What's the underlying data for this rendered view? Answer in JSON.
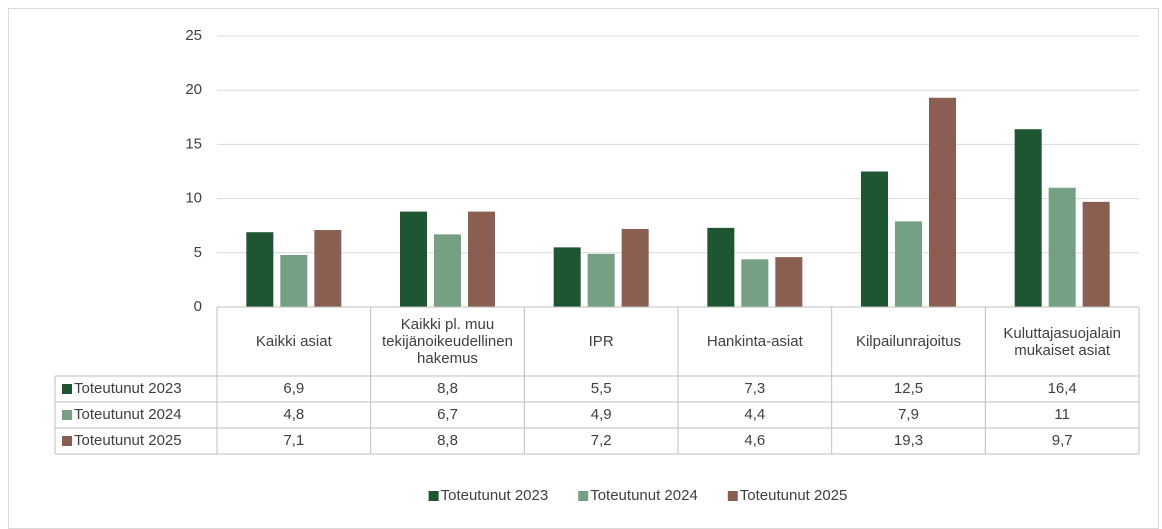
{
  "chart_data": {
    "type": "bar",
    "categories": [
      "Kaikki asiat",
      "Kaikki pl. muu tekijänoikeudellinen hakemus",
      "IPR",
      "Hankinta-asiat",
      "Kilpailunrajoitus",
      "Kuluttajasuojalain mukaiset asiat"
    ],
    "series": [
      {
        "name": "Toteutunut 2023",
        "color": "#1e5631",
        "values": [
          6.9,
          8.8,
          5.5,
          7.3,
          12.5,
          16.4
        ],
        "value_labels": [
          "6,9",
          "8,8",
          "5,5",
          "7,3",
          "12,5",
          "16,4"
        ]
      },
      {
        "name": "Toteutunut 2024",
        "color": "#76a083",
        "values": [
          4.8,
          6.7,
          4.9,
          4.4,
          7.9,
          11
        ],
        "value_labels": [
          "4,8",
          "6,7",
          "4,9",
          "4,4",
          "7,9",
          "11"
        ]
      },
      {
        "name": "Toteutunut 2025",
        "color": "#8b5e52",
        "values": [
          7.1,
          8.8,
          7.2,
          4.6,
          19.3,
          9.7
        ],
        "value_labels": [
          "7,1",
          "8,8",
          "7,2",
          "4,6",
          "19,3",
          "9,7"
        ]
      }
    ],
    "ylim": [
      0,
      25
    ],
    "yticks": [
      0,
      5,
      10,
      15,
      20,
      25
    ],
    "grid": true,
    "legend": "bottom",
    "data_table": true
  }
}
